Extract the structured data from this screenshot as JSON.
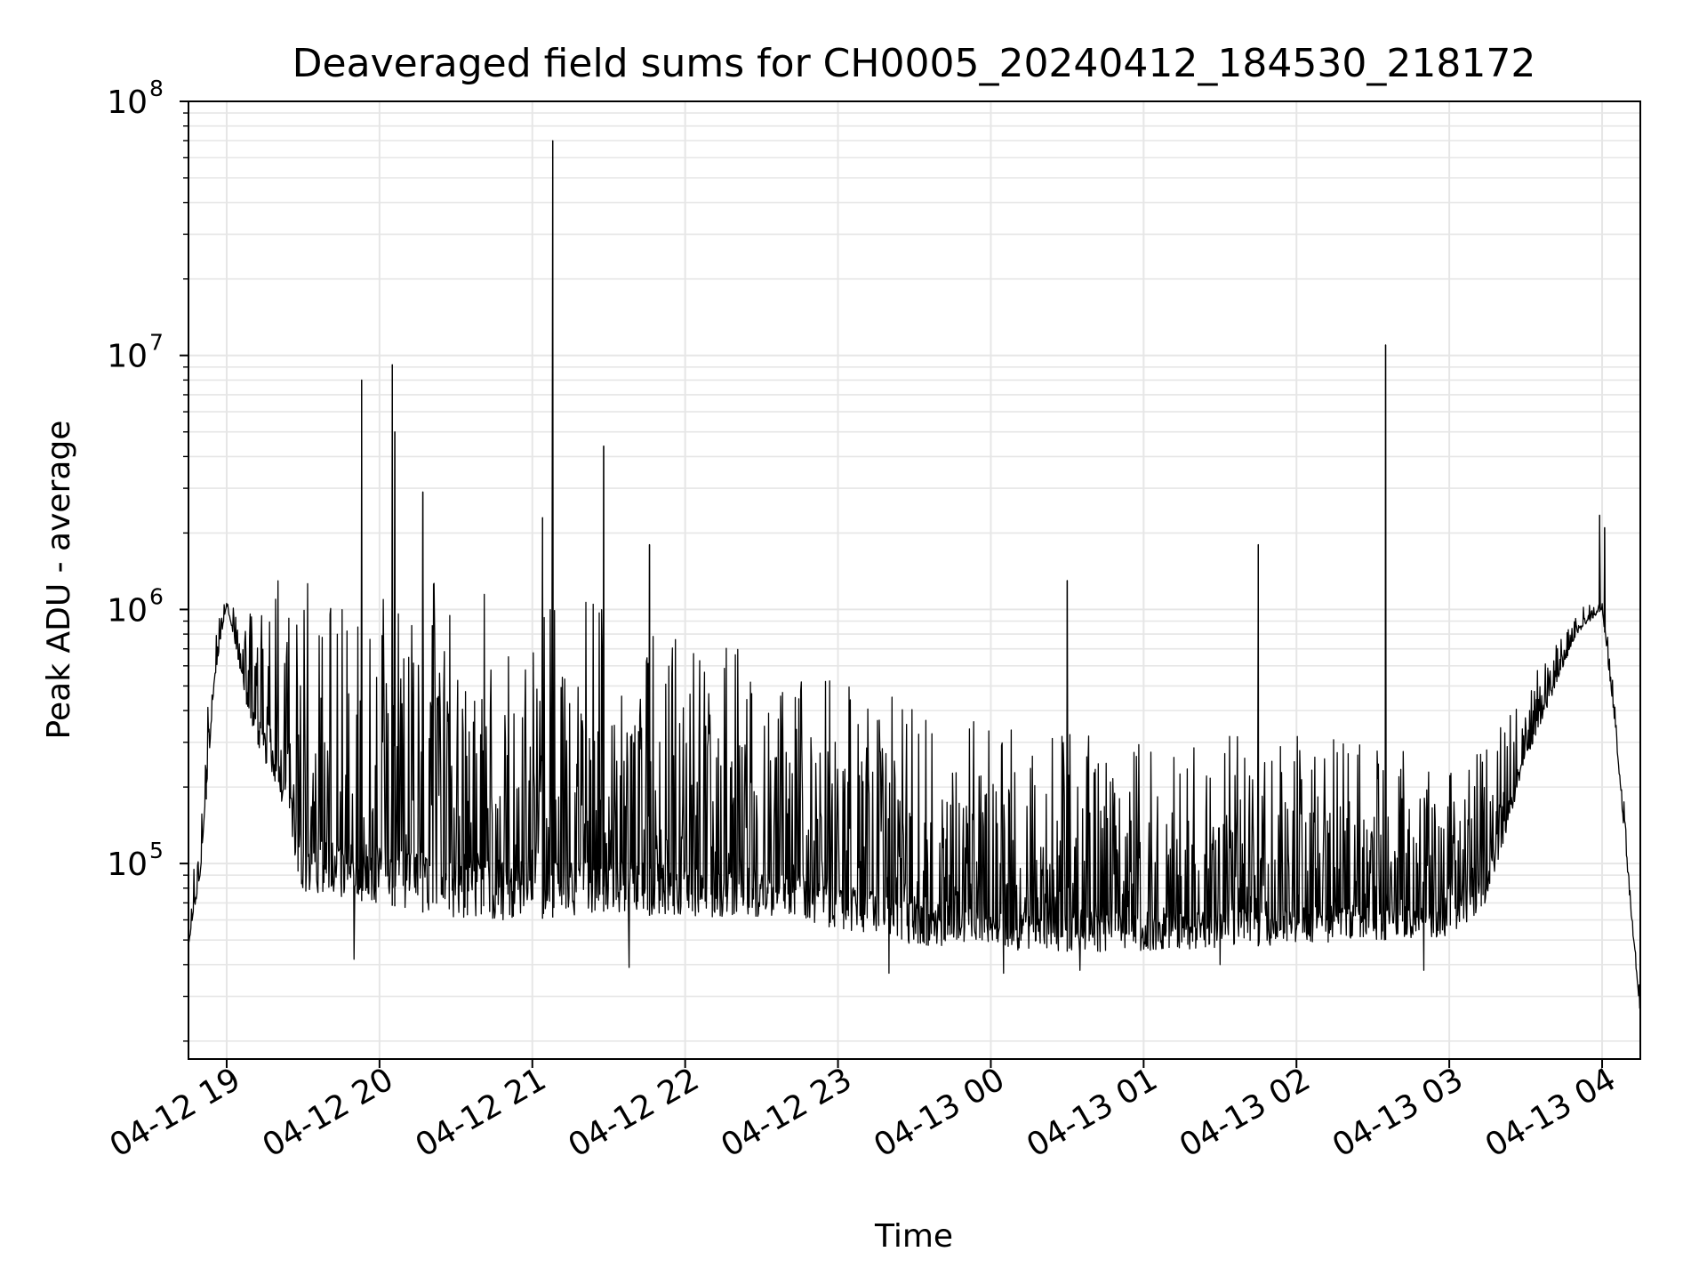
{
  "chart_data": {
    "type": "line",
    "title": "Deaveraged field sums for CH0005_20240412_184530_218172",
    "xlabel": "Time",
    "ylabel": "Peak ADU - average",
    "yscale": "log",
    "ylim": [
      17000,
      100000000
    ],
    "xlim": [
      "2024-04-12 18:45",
      "2024-04-13 04:15"
    ],
    "grid": true,
    "line_color": "#000000",
    "grid_color": "#e6e6e6",
    "x_ticks": [
      {
        "time": "2024-04-12 19:00",
        "label": "04-12 19"
      },
      {
        "time": "2024-04-12 20:00",
        "label": "04-12 20"
      },
      {
        "time": "2024-04-12 21:00",
        "label": "04-12 21"
      },
      {
        "time": "2024-04-12 22:00",
        "label": "04-12 22"
      },
      {
        "time": "2024-04-12 23:00",
        "label": "04-12 23"
      },
      {
        "time": "2024-04-13 00:00",
        "label": "04-13 00"
      },
      {
        "time": "2024-04-13 01:00",
        "label": "04-13 01"
      },
      {
        "time": "2024-04-13 02:00",
        "label": "04-13 02"
      },
      {
        "time": "2024-04-13 03:00",
        "label": "04-13 03"
      },
      {
        "time": "2024-04-13 04:00",
        "label": "04-13 04"
      }
    ],
    "y_ticks": [
      {
        "value": 100000,
        "base": "10",
        "exp": "5"
      },
      {
        "value": 1000000,
        "base": "10",
        "exp": "6"
      },
      {
        "value": 10000000,
        "base": "10",
        "exp": "7"
      },
      {
        "value": 100000000,
        "base": "10",
        "exp": "8"
      }
    ],
    "envelope": [
      {
        "time": "2024-04-12 18:45",
        "low": 48000,
        "high": 50000
      },
      {
        "time": "2024-04-12 18:50",
        "low": 90000,
        "high": 230000
      },
      {
        "time": "2024-04-12 18:55",
        "low": 500000,
        "high": 800000
      },
      {
        "time": "2024-04-12 19:00",
        "low": 1050000,
        "high": 1150000
      },
      {
        "time": "2024-04-12 19:05",
        "low": 600000,
        "high": 900000
      },
      {
        "time": "2024-04-12 19:10",
        "low": 320000,
        "high": 1200000
      },
      {
        "time": "2024-04-12 19:20",
        "low": 200000,
        "high": 1300000
      },
      {
        "time": "2024-04-12 19:30",
        "low": 75000,
        "high": 1350000
      },
      {
        "time": "2024-04-12 20:00",
        "low": 70000,
        "high": 1400000
      },
      {
        "time": "2024-04-12 20:30",
        "low": 60000,
        "high": 1350000
      },
      {
        "time": "2024-04-12 21:00",
        "low": 60000,
        "high": 1300000
      },
      {
        "time": "2024-04-12 21:30",
        "low": 65000,
        "high": 1000000
      },
      {
        "time": "2024-04-12 22:00",
        "low": 60000,
        "high": 800000
      },
      {
        "time": "2024-04-12 22:30",
        "low": 62000,
        "high": 700000
      },
      {
        "time": "2024-04-12 23:00",
        "low": 55000,
        "high": 550000
      },
      {
        "time": "2024-04-12 23:30",
        "low": 48000,
        "high": 420000
      },
      {
        "time": "2024-04-13 00:00",
        "low": 45000,
        "high": 350000
      },
      {
        "time": "2024-04-13 01:00",
        "low": 45000,
        "high": 330000
      },
      {
        "time": "2024-04-13 02:00",
        "low": 48000,
        "high": 320000
      },
      {
        "time": "2024-04-13 02:30",
        "low": 50000,
        "high": 300000
      },
      {
        "time": "2024-04-13 03:00",
        "low": 50000,
        "high": 250000
      },
      {
        "time": "2024-04-13 03:15",
        "low": 70000,
        "high": 300000
      },
      {
        "time": "2024-04-13 03:30",
        "low": 250000,
        "high": 500000
      },
      {
        "time": "2024-04-13 03:40",
        "low": 450000,
        "high": 700000
      },
      {
        "time": "2024-04-13 03:50",
        "low": 800000,
        "high": 1050000
      },
      {
        "time": "2024-04-13 04:00",
        "low": 1000000,
        "high": 1100000
      },
      {
        "time": "2024-04-13 04:05",
        "low": 350000,
        "high": 500000
      },
      {
        "time": "2024-04-13 04:10",
        "low": 90000,
        "high": 120000
      },
      {
        "time": "2024-04-13 04:15",
        "low": 25000,
        "high": 30000
      }
    ],
    "spikes": [
      {
        "time": "2024-04-12 18:52",
        "value": 230000
      },
      {
        "time": "2024-04-12 19:53",
        "value": 8000000
      },
      {
        "time": "2024-04-12 20:05",
        "value": 9200000
      },
      {
        "time": "2024-04-12 20:06",
        "value": 5000000
      },
      {
        "time": "2024-04-12 20:17",
        "value": 2900000
      },
      {
        "time": "2024-04-12 21:04",
        "value": 2300000
      },
      {
        "time": "2024-04-12 21:08",
        "value": 70000000
      },
      {
        "time": "2024-04-12 21:28",
        "value": 4400000
      },
      {
        "time": "2024-04-12 21:46",
        "value": 1800000
      },
      {
        "time": "2024-04-13 00:30",
        "value": 1300000
      },
      {
        "time": "2024-04-13 01:45",
        "value": 1800000
      },
      {
        "time": "2024-04-13 02:35",
        "value": 11000000
      },
      {
        "time": "2024-04-13 03:59",
        "value": 2350000
      },
      {
        "time": "2024-04-13 04:01",
        "value": 2100000
      }
    ],
    "dips": [
      {
        "time": "2024-04-12 19:50",
        "value": 42000
      },
      {
        "time": "2024-04-12 21:38",
        "value": 39000
      },
      {
        "time": "2024-04-12 23:20",
        "value": 37000
      },
      {
        "time": "2024-04-13 00:05",
        "value": 37000
      },
      {
        "time": "2024-04-13 00:35",
        "value": 38000
      },
      {
        "time": "2024-04-13 01:30",
        "value": 40000
      },
      {
        "time": "2024-04-13 02:50",
        "value": 38000
      }
    ]
  }
}
